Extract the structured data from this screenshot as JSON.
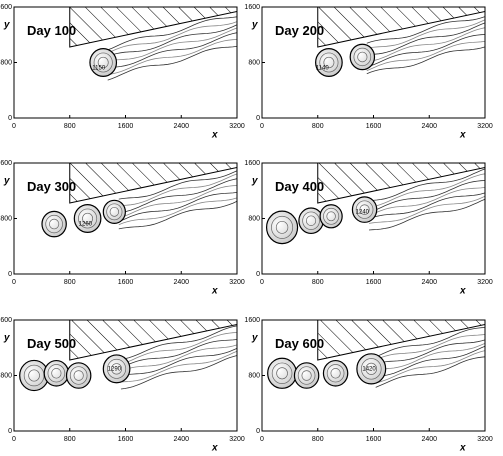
{
  "chart_data": [
    {
      "type": "contour",
      "title": "Day 100",
      "xlabel": "x",
      "ylabel": "y",
      "xlim": [
        0,
        3200
      ],
      "ylim": [
        0,
        1600
      ],
      "xticks": [
        0,
        800,
        1600,
        2400,
        3200
      ],
      "yticks": [
        0,
        800,
        1600
      ],
      "annotations": [
        "1150"
      ]
    },
    {
      "type": "contour",
      "title": "Day 200",
      "xlabel": "x",
      "ylabel": "y",
      "xlim": [
        0,
        3200
      ],
      "ylim": [
        0,
        1600
      ],
      "xticks": [
        0,
        800,
        1600,
        2400,
        3200
      ],
      "yticks": [
        0,
        800,
        1600
      ],
      "annotations": [
        "1140"
      ]
    },
    {
      "type": "contour",
      "title": "Day 300",
      "xlabel": "x",
      "ylabel": "y",
      "xlim": [
        0,
        3200
      ],
      "ylim": [
        0,
        1600
      ],
      "xticks": [
        0,
        800,
        1600,
        2400,
        3200
      ],
      "yticks": [
        0,
        800,
        1600
      ],
      "annotations": [
        "1260"
      ]
    },
    {
      "type": "contour",
      "title": "Day 400",
      "xlabel": "x",
      "ylabel": "y",
      "xlim": [
        0,
        3200
      ],
      "ylim": [
        0,
        1600
      ],
      "xticks": [
        0,
        800,
        1600,
        2400,
        3200
      ],
      "yticks": [
        0,
        800,
        1600
      ],
      "annotations": [
        "1240"
      ]
    },
    {
      "type": "contour",
      "title": "Day 500",
      "xlabel": "x",
      "ylabel": "y",
      "xlim": [
        0,
        3200
      ],
      "ylim": [
        0,
        1600
      ],
      "xticks": [
        0,
        800,
        1600,
        2400,
        3200
      ],
      "yticks": [
        0,
        800,
        1600
      ],
      "annotations": [
        "1290"
      ]
    },
    {
      "type": "contour",
      "title": "Day 600",
      "xlabel": "x",
      "ylabel": "y",
      "xlim": [
        0,
        3200
      ],
      "ylim": [
        0,
        1600
      ],
      "xticks": [
        0,
        800,
        1600,
        2400,
        3200
      ],
      "yticks": [
        0,
        800,
        1600
      ],
      "annotations": [
        "1420"
      ]
    }
  ]
}
